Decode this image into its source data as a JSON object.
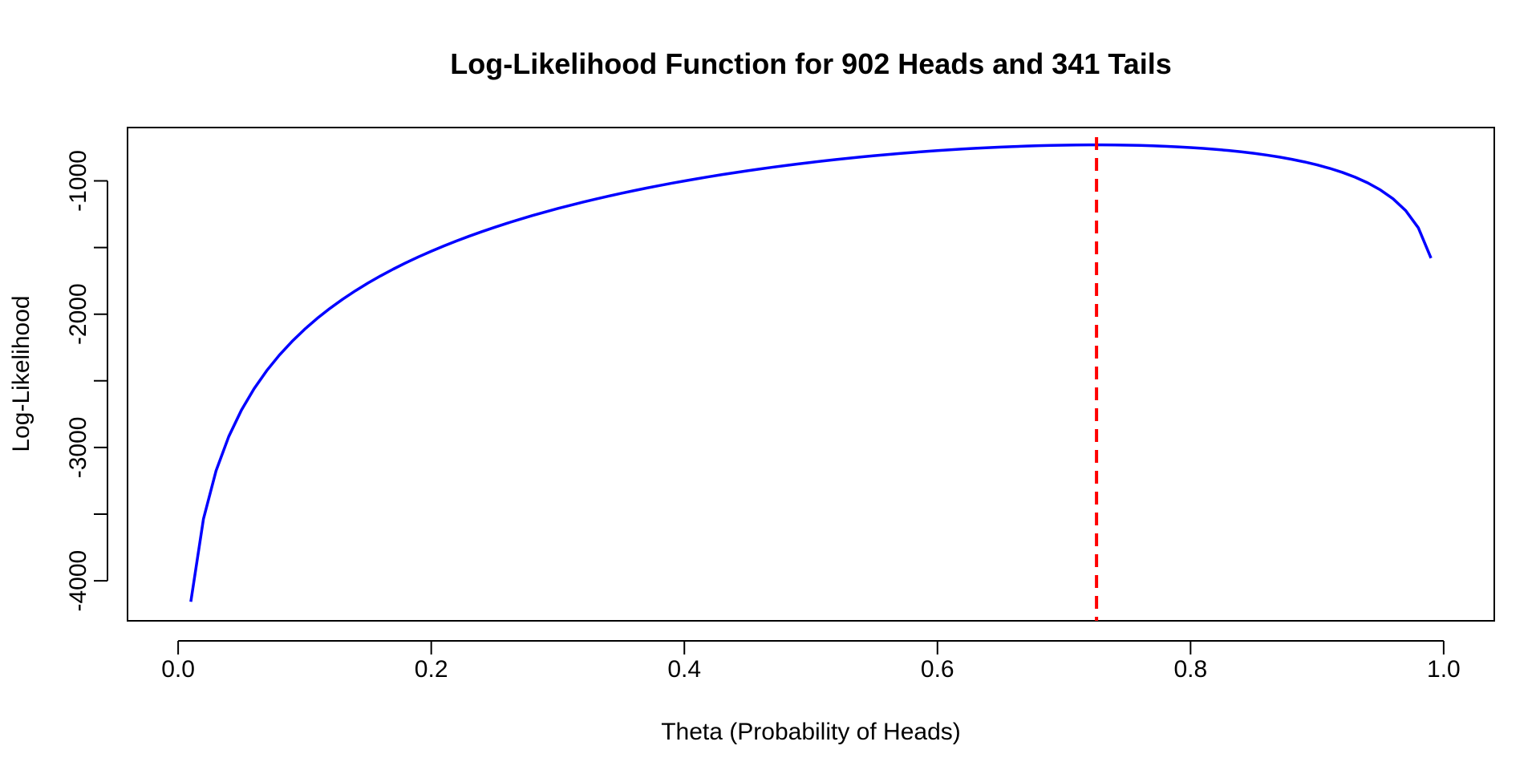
{
  "chart_data": {
    "type": "line",
    "title": "Log-Likelihood Function for 902 Heads and 341 Tails",
    "xlabel": "Theta (Probability of Heads)",
    "ylabel": "Log-Likelihood",
    "xlim": [
      -0.04,
      1.04
    ],
    "ylim": [
      -4300,
      -600
    ],
    "x_ticks": [
      0.0,
      0.2,
      0.4,
      0.6,
      0.8,
      1.0
    ],
    "x_tick_labels": [
      "0.0",
      "0.2",
      "0.4",
      "0.6",
      "0.8",
      "1.0"
    ],
    "y_ticks": [
      -4000,
      -3500,
      -3000,
      -2500,
      -2000,
      -1500,
      -1000
    ],
    "y_tick_labels": [
      "-4000",
      "",
      "-3000",
      "",
      "-2000",
      "",
      "-1000"
    ],
    "grid": false,
    "heads": 902,
    "tails": 341,
    "theta_range": [
      0.01,
      0.99
    ],
    "theta_step": 0.01,
    "series": [
      {
        "color": "#0000ff",
        "style": "solid"
      }
    ],
    "reference_lines": [
      {
        "orientation": "vertical",
        "x": 0.7257,
        "color": "#ff0000",
        "style": "dashed"
      }
    ]
  }
}
